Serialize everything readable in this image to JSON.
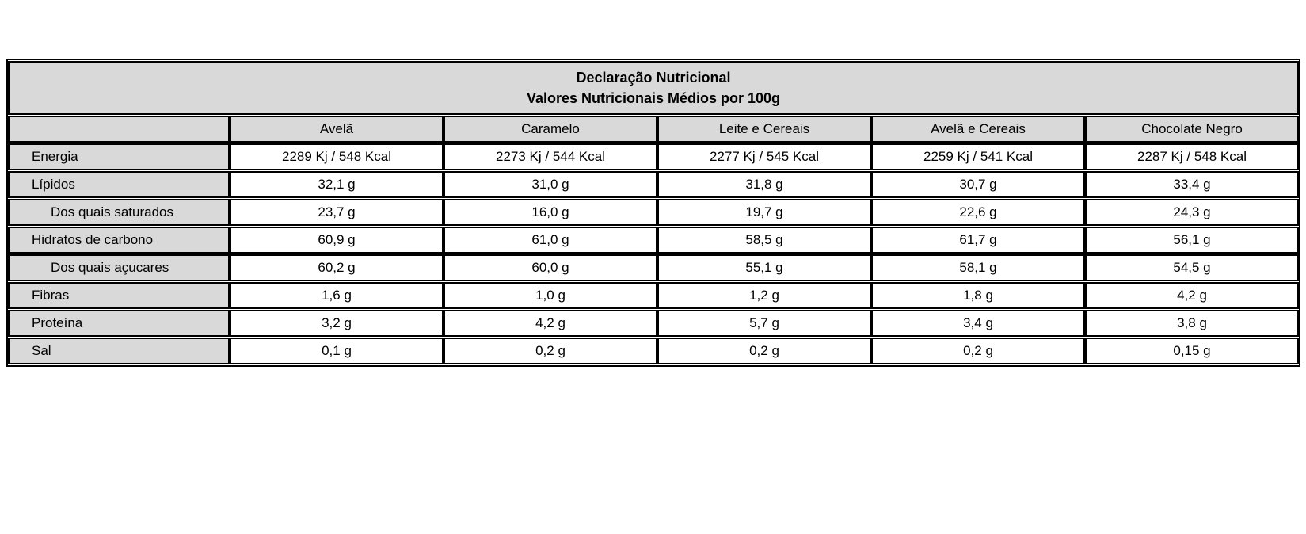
{
  "colors": {
    "cell_shade": "#d9d9d9",
    "border": "#000000",
    "background": "#ffffff"
  },
  "table": {
    "title_line1": "Declaração Nutricional",
    "title_line2": "Valores Nutricionais Médios por 100g",
    "columns": [
      "Avelã",
      "Caramelo",
      "Leite e Cereais",
      "Avelã e Cereais",
      "Chocolate Negro"
    ],
    "rows": [
      {
        "label": "Energia",
        "values": [
          "2289 Kj / 548 Kcal",
          "2273 Kj / 544 Kcal",
          "2277 Kj / 545 Kcal",
          "2259 Kj / 541 Kcal",
          "2287 Kj / 548 Kcal"
        ]
      },
      {
        "label": "Lípidos",
        "values": [
          "32,1 g",
          "31,0 g",
          "31,8 g",
          "30,7 g",
          "33,4 g"
        ]
      },
      {
        "label": "Dos quais saturados",
        "values": [
          "23,7 g",
          "16,0 g",
          "19,7 g",
          "22,6 g",
          "24,3 g"
        ]
      },
      {
        "label": "Hidratos de carbono",
        "values": [
          "60,9 g",
          "61,0 g",
          "58,5 g",
          "61,7 g",
          "56,1 g"
        ]
      },
      {
        "label": "Dos quais açucares",
        "values": [
          "60,2 g",
          "60,0 g",
          "55,1 g",
          "58,1 g",
          "54,5 g"
        ]
      },
      {
        "label": "Fibras",
        "values": [
          "1,6 g",
          "1,0 g",
          "1,2 g",
          "1,8 g",
          "4,2 g"
        ]
      },
      {
        "label": "Proteína",
        "values": [
          "3,2 g",
          "4,2 g",
          "5,7 g",
          "3,4 g",
          "3,8 g"
        ]
      },
      {
        "label": "Sal",
        "values": [
          "0,1 g",
          "0,2 g",
          "0,2 g",
          "0,2 g",
          "0,15 g"
        ]
      }
    ]
  },
  "chart_data": {
    "type": "table",
    "title": "Declaração Nutricional — Valores Nutricionais Médios por 100g",
    "categories": [
      "Avelã",
      "Caramelo",
      "Leite e Cereais",
      "Avelã e Cereais",
      "Chocolate Negro"
    ],
    "series": [
      {
        "name": "Energia",
        "values": [
          "2289 Kj / 548 Kcal",
          "2273 Kj / 544 Kcal",
          "2277 Kj / 545 Kcal",
          "2259 Kj / 541 Kcal",
          "2287 Kj / 548 Kcal"
        ]
      },
      {
        "name": "Lípidos",
        "values": [
          "32,1 g",
          "31,0 g",
          "31,8 g",
          "30,7 g",
          "33,4 g"
        ]
      },
      {
        "name": "Dos quais saturados",
        "values": [
          "23,7 g",
          "16,0 g",
          "19,7 g",
          "22,6 g",
          "24,3 g"
        ]
      },
      {
        "name": "Hidratos de carbono",
        "values": [
          "60,9 g",
          "61,0 g",
          "58,5 g",
          "61,7 g",
          "56,1 g"
        ]
      },
      {
        "name": "Dos quais açucares",
        "values": [
          "60,2 g",
          "60,0 g",
          "55,1 g",
          "58,1 g",
          "54,5 g"
        ]
      },
      {
        "name": "Fibras",
        "values": [
          "1,6 g",
          "1,0 g",
          "1,2 g",
          "1,8 g",
          "4,2 g"
        ]
      },
      {
        "name": "Proteína",
        "values": [
          "3,2 g",
          "4,2 g",
          "5,7 g",
          "3,4 g",
          "3,8 g"
        ]
      },
      {
        "name": "Sal",
        "values": [
          "0,1 g",
          "0,2 g",
          "0,2 g",
          "0,2 g",
          "0,15 g"
        ]
      }
    ]
  }
}
